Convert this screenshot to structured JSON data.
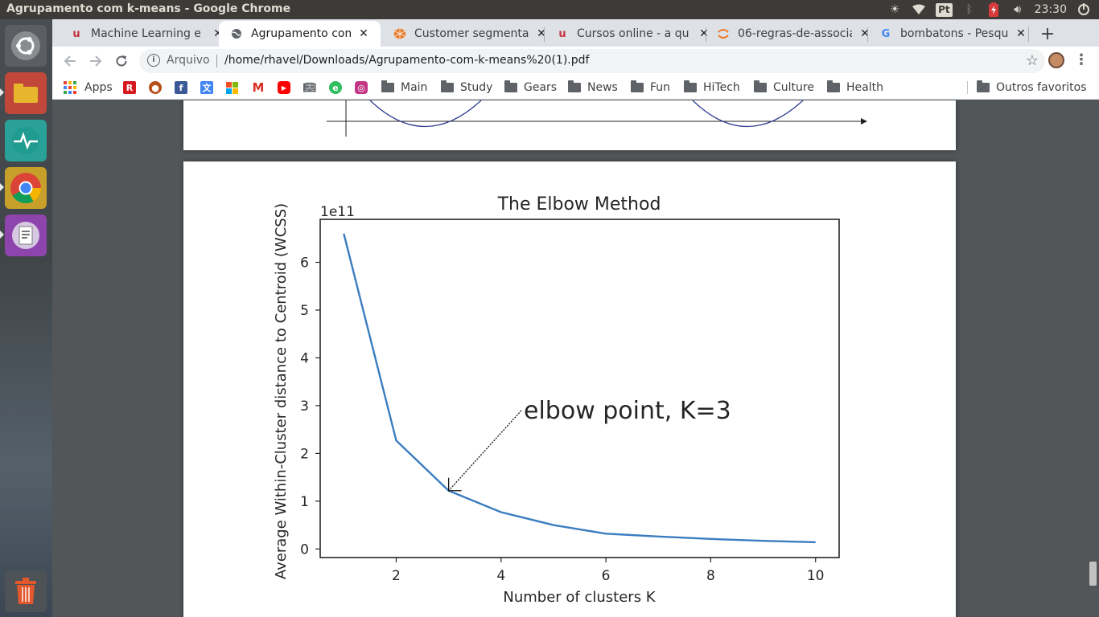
{
  "window": {
    "title": "Agrupamento com k-means - Google Chrome"
  },
  "system_tray": {
    "language": "Pt",
    "clock": "23:30"
  },
  "tabs": [
    {
      "label": "Machine Learning e",
      "icon": "udemy-icon",
      "active": false
    },
    {
      "label": "Agrupamento com k",
      "icon": "globe-icon",
      "active": true
    },
    {
      "label": "Customer segmenta",
      "icon": "cube-icon",
      "active": false
    },
    {
      "label": "Cursos online - a qu",
      "icon": "udemy-icon",
      "active": false
    },
    {
      "label": "06-regras-de-associa",
      "icon": "jupyter-icon",
      "active": false
    },
    {
      "label": "bombatons - Pesqui",
      "icon": "google-icon",
      "active": false
    }
  ],
  "toolbar": {
    "security_label": "Arquivo",
    "url": "/home/rhavel/Downloads/Agrupamento-com-k-means%20(1).pdf"
  },
  "bookmarks": {
    "apps_label": "Apps",
    "folders": [
      "Main",
      "Study",
      "Gears",
      "News",
      "Fun",
      "HiTech",
      "Culture",
      "Health"
    ],
    "other_label": "Outros favoritos"
  },
  "chart_data": {
    "type": "line",
    "title": "The Elbow Method",
    "xlabel": "Number of clusters K",
    "ylabel": "Average Within-Cluster distance to Centroid (WCSS)",
    "y_offset_label": "1e11",
    "x": [
      1,
      2,
      3,
      4,
      5,
      6,
      7,
      8,
      9,
      10
    ],
    "y": [
      6.6,
      2.27,
      1.22,
      0.77,
      0.5,
      0.32,
      0.26,
      0.21,
      0.17,
      0.14
    ],
    "xlim": [
      0.55,
      10.45
    ],
    "ylim": [
      -0.18,
      6.9
    ],
    "xticks": [
      2,
      4,
      6,
      8,
      10
    ],
    "yticks": [
      0,
      1,
      2,
      3,
      4,
      5,
      6
    ],
    "grid": false,
    "line_color": "#3a7dc0",
    "annotation": {
      "text": "elbow point, K=3",
      "x": 3,
      "y": 1.22
    }
  }
}
